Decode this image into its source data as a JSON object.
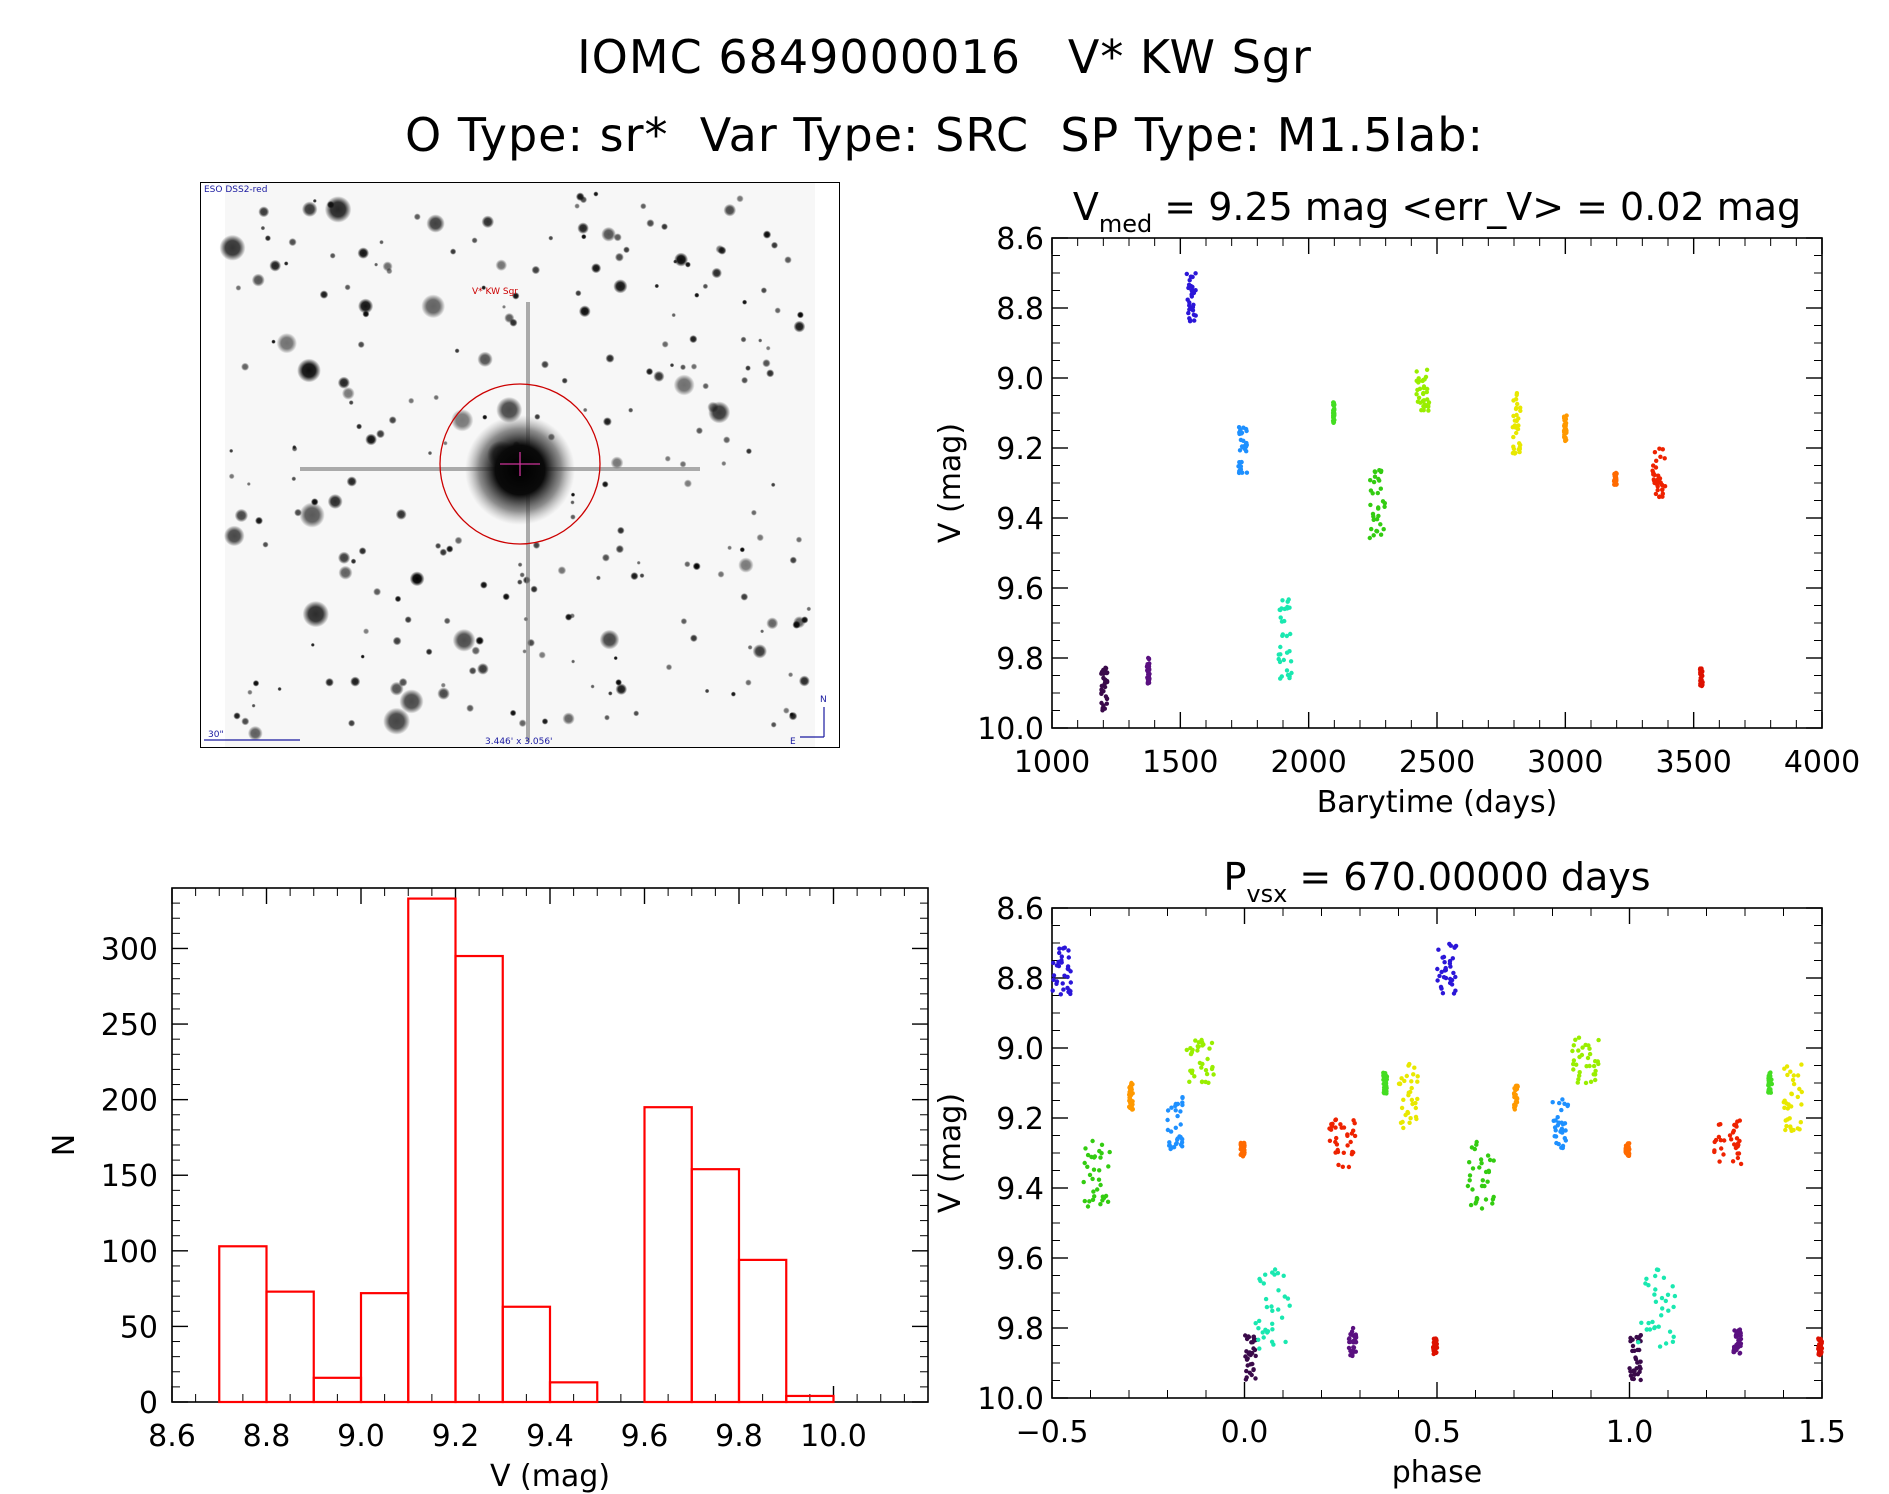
{
  "header": {
    "title_line1": "IOMC 6849000016   V* KW Sgr",
    "title_line2": "O Type: sr*  Var Type: SRC  SP Type: M1.5Iab:"
  },
  "sky_image": {
    "survey": "ESO DSS2-red",
    "target": "V* KW Sgr",
    "scale_label": "30\"",
    "fov_label": "3.446' x 3.056'",
    "north": "N",
    "east": "E"
  },
  "colors": {
    "histogram": "#ff0000",
    "target_circle": "#cc0000",
    "sky_text": "#1a1aa0"
  },
  "chart_data": [
    {
      "id": "lightcurve",
      "type": "scatter",
      "title_main": "V",
      "title_sub": "med",
      "title_rest": " = 9.25 mag <err_V> = 0.02 mag",
      "xlabel": "Barytime (days)",
      "ylabel": "V (mag)",
      "xlim": [
        1000,
        4000
      ],
      "ylim": [
        10.0,
        8.6
      ],
      "y_inverted": true,
      "xticks": [
        1000,
        1500,
        2000,
        2500,
        3000,
        3500,
        4000
      ],
      "yticks": [
        "8.6",
        "8.8",
        "9.0",
        "9.2",
        "9.4",
        "9.6",
        "9.8",
        "10.0"
      ],
      "color_by_time": "rainbow",
      "groups": [
        {
          "t": [
            1190,
            1215
          ],
          "mag": [
            9.82,
            9.95
          ],
          "color": "#3a0a4a"
        },
        {
          "t": [
            1370,
            1380
          ],
          "mag": [
            9.8,
            9.88
          ],
          "color": "#5a1080"
        },
        {
          "t": [
            1525,
            1560
          ],
          "mag": [
            8.7,
            8.85
          ],
          "color": "#2b16d8"
        },
        {
          "t": [
            1725,
            1760
          ],
          "mag": [
            9.14,
            9.29
          ],
          "color": "#1e90ff"
        },
        {
          "t": [
            1880,
            1935
          ],
          "mag": [
            9.63,
            9.86
          ],
          "color": "#19e8b0"
        },
        {
          "t": [
            2095,
            2100
          ],
          "mag": [
            9.07,
            9.13
          ],
          "color": "#44dd22"
        },
        {
          "t": [
            2235,
            2300
          ],
          "mag": [
            9.26,
            9.46
          ],
          "color": "#33cc11"
        },
        {
          "t": [
            2420,
            2470
          ],
          "mag": [
            8.97,
            9.1
          ],
          "color": "#99ee00"
        },
        {
          "t": [
            2795,
            2825
          ],
          "mag": [
            9.04,
            9.24
          ],
          "color": "#e8e800"
        },
        {
          "t": [
            2995,
            3005
          ],
          "mag": [
            9.1,
            9.18
          ],
          "color": "#ff9900"
        },
        {
          "t": [
            3190,
            3200
          ],
          "mag": [
            9.27,
            9.31
          ],
          "color": "#ff6a00"
        },
        {
          "t": [
            3340,
            3390
          ],
          "mag": [
            9.2,
            9.34
          ],
          "color": "#ee2200"
        },
        {
          "t": [
            3525,
            3535
          ],
          "mag": [
            9.83,
            9.88
          ],
          "color": "#dd1100"
        }
      ]
    },
    {
      "id": "phase",
      "type": "scatter",
      "title_main": "P",
      "title_sub": "vsx",
      "title_rest": " = 670.00000 days",
      "xlabel": "phase",
      "ylabel": "V (mag)",
      "xlim": [
        -0.5,
        1.5
      ],
      "ylim": [
        10.0,
        8.6
      ],
      "y_inverted": true,
      "xticks": [
        "−0.5",
        "0.0",
        "0.5",
        "1.0",
        "1.5"
      ],
      "yticks": [
        "8.6",
        "8.8",
        "9.0",
        "9.2",
        "9.4",
        "9.6",
        "9.8",
        "10.0"
      ],
      "groups": [
        {
          "p": [
            0.0,
            0.03
          ],
          "mag": [
            9.82,
            9.95
          ],
          "color": "#3a0a4a"
        },
        {
          "p": [
            0.27,
            0.29
          ],
          "mag": [
            9.8,
            9.88
          ],
          "color": "#5a1080"
        },
        {
          "p": [
            0.5,
            0.55
          ],
          "mag": [
            8.7,
            8.85
          ],
          "color": "#2b16d8"
        },
        {
          "p": [
            0.8,
            0.84
          ],
          "mag": [
            9.14,
            9.29
          ],
          "color": "#1e90ff"
        },
        {
          "p": [
            0.02,
            0.12
          ],
          "mag": [
            9.63,
            9.86
          ],
          "color": "#19e8b0"
        },
        {
          "p": [
            0.36,
            0.37
          ],
          "mag": [
            9.07,
            9.13
          ],
          "color": "#44dd22"
        },
        {
          "p": [
            0.58,
            0.65
          ],
          "mag": [
            9.26,
            9.46
          ],
          "color": "#33cc11"
        },
        {
          "p": [
            0.85,
            0.92
          ],
          "mag": [
            8.97,
            9.1
          ],
          "color": "#99ee00"
        },
        {
          "p": [
            0.4,
            0.45
          ],
          "mag": [
            9.04,
            9.24
          ],
          "color": "#e8e800"
        },
        {
          "p": [
            0.7,
            0.71
          ],
          "mag": [
            9.1,
            9.18
          ],
          "color": "#ff9900"
        },
        {
          "p": [
            0.99,
            1.0
          ],
          "mag": [
            9.27,
            9.31
          ],
          "color": "#ff6a00"
        },
        {
          "p": [
            0.22,
            0.29
          ],
          "mag": [
            9.2,
            9.34
          ],
          "color": "#ee2200"
        },
        {
          "p": [
            0.49,
            0.5
          ],
          "mag": [
            9.83,
            9.88
          ],
          "color": "#dd1100"
        }
      ],
      "fold_copies": [
        -1,
        0,
        1
      ]
    },
    {
      "id": "histogram",
      "type": "bar",
      "xlabel": "V (mag)",
      "ylabel": "N",
      "xlim": [
        8.6,
        10.2
      ],
      "ylim": [
        0,
        340
      ],
      "xticks": [
        "8.6",
        "8.8",
        "9.0",
        "9.2",
        "9.4",
        "9.6",
        "9.8",
        "10.0"
      ],
      "yticks": [
        "0",
        "50",
        "100",
        "150",
        "200",
        "250",
        "300"
      ],
      "bin_edges": [
        8.7,
        8.8,
        8.9,
        9.0,
        9.1,
        9.2,
        9.3,
        9.4,
        9.5,
        9.6,
        9.7,
        9.8,
        9.9,
        10.0
      ],
      "counts": [
        103,
        73,
        16,
        72,
        333,
        295,
        63,
        13,
        0,
        195,
        154,
        94,
        4
      ]
    }
  ]
}
